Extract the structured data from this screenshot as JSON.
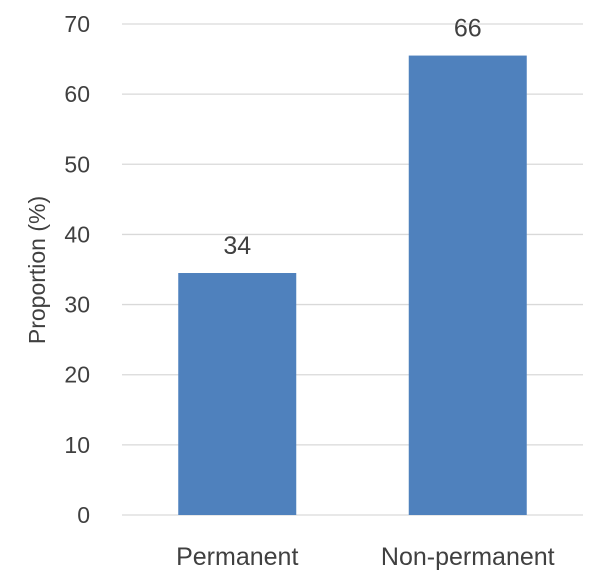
{
  "chart_data": {
    "type": "bar",
    "categories": [
      "Permanent",
      "Non-permanent"
    ],
    "values": [
      34,
      66
    ],
    "bar_values": [
      34.5,
      65.5
    ],
    "title": "",
    "xlabel": "",
    "ylabel": "Proportion (%)",
    "ylim": [
      0,
      70
    ],
    "yticks": [
      0,
      10,
      20,
      30,
      40,
      50,
      60,
      70
    ],
    "grid": true,
    "legend": "none",
    "bar_color": "#4f81bd",
    "text_color": "#404040",
    "grid_color": "#d9d9d9"
  }
}
